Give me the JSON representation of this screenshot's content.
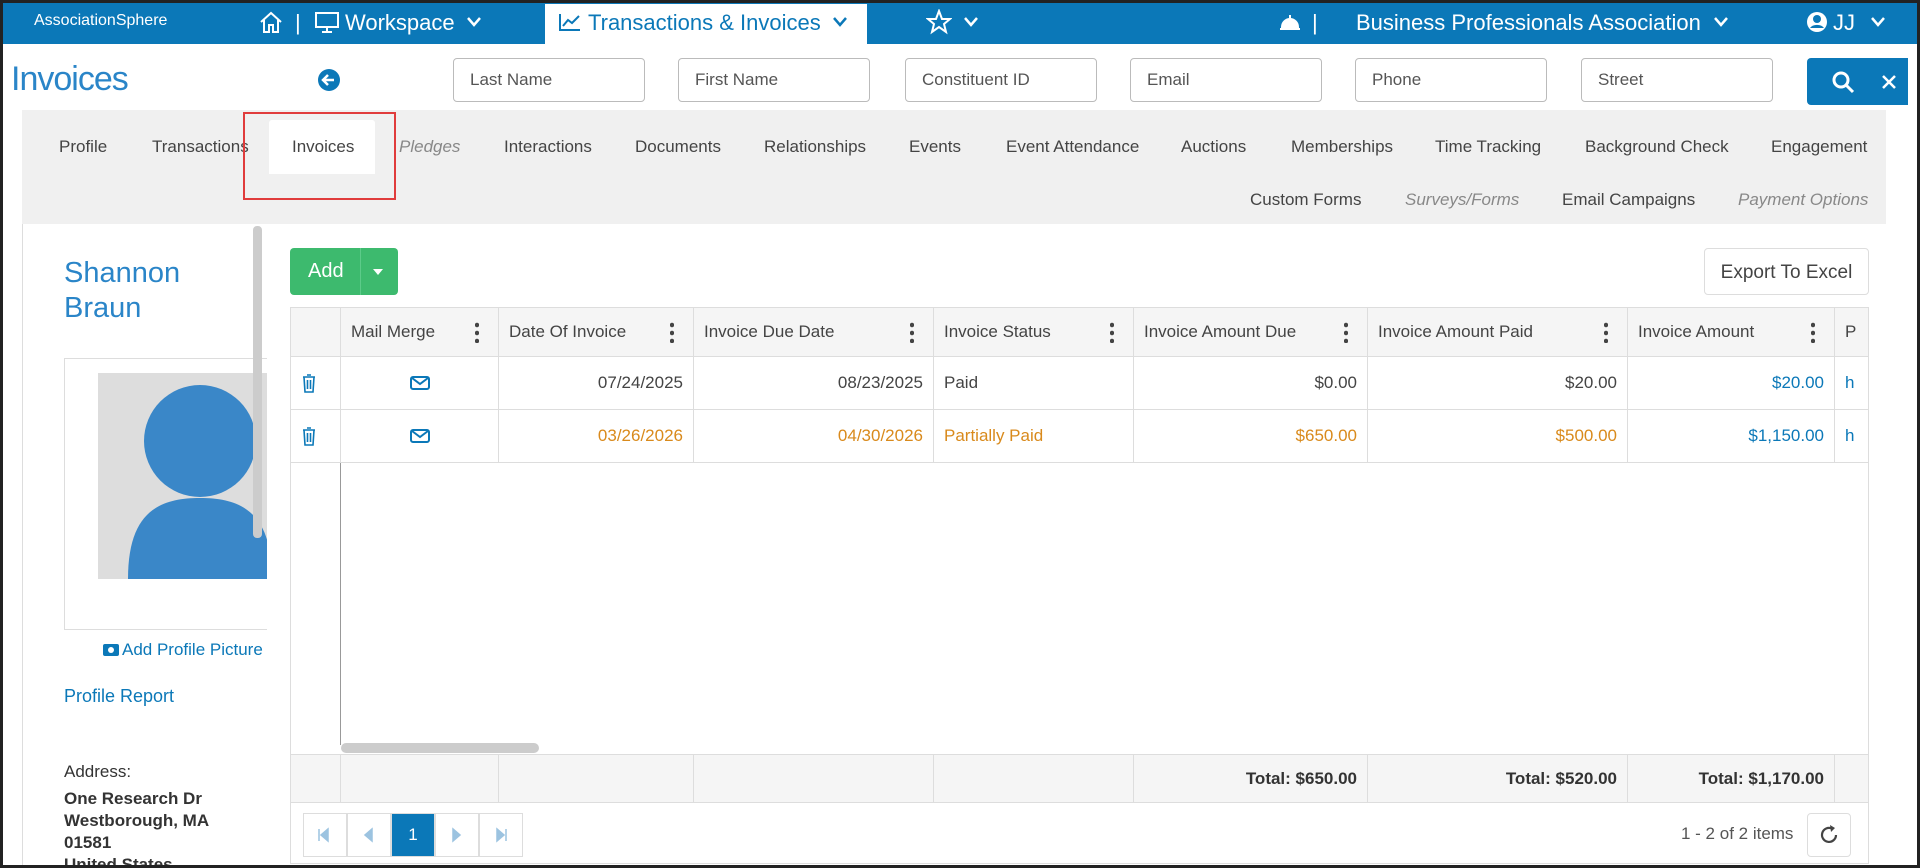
{
  "nav": {
    "brand": "AssociationSphere",
    "workspace": "Workspace",
    "active": "Transactions & Invoices",
    "organization": "Business Professionals Association",
    "user": "JJ"
  },
  "page_title": "Invoices",
  "search_fields": [
    "Last Name",
    "First Name",
    "Constituent ID",
    "Email",
    "Phone",
    "Street"
  ],
  "tabs": {
    "row1": [
      {
        "label": "Profile"
      },
      {
        "label": "Transactions"
      },
      {
        "label": "Invoices",
        "active": true
      },
      {
        "label": "Pledges",
        "style": "italic"
      },
      {
        "label": "Interactions"
      },
      {
        "label": "Documents"
      },
      {
        "label": "Relationships"
      },
      {
        "label": "Events"
      },
      {
        "label": "Event Attendance"
      },
      {
        "label": "Auctions"
      },
      {
        "label": "Memberships"
      },
      {
        "label": "Time Tracking"
      },
      {
        "label": "Background Check"
      },
      {
        "label": "Engagement"
      }
    ],
    "row2": [
      {
        "label": "Custom Forms"
      },
      {
        "label": "Surveys/Forms",
        "style": "italic"
      },
      {
        "label": "Email Campaigns"
      },
      {
        "label": "Payment Options",
        "style": "italic"
      }
    ]
  },
  "profile": {
    "name": "Shannon Braun",
    "add_picture": "Add Profile Picture",
    "report": "Profile Report",
    "address_label": "Address:",
    "address": [
      "One Research Dr",
      "Westborough, MA",
      "01581",
      "United States"
    ]
  },
  "buttons": {
    "add": "Add",
    "export": "Export To Excel"
  },
  "grid": {
    "columns": [
      "Mail Merge",
      "Date Of Invoice",
      "Invoice Due Date",
      "Invoice Status",
      "Invoice Amount Due",
      "Invoice Amount Paid",
      "Invoice Amount",
      "P"
    ],
    "rows": [
      {
        "date": "07/24/2025",
        "due": "08/23/2025",
        "status": "Paid",
        "amount_due": "$0.00",
        "amount_paid": "$20.00",
        "amount": "$20.00",
        "extra": "h"
      },
      {
        "date": "03/26/2026",
        "due": "04/30/2026",
        "status": "Partially Paid",
        "amount_due": "$650.00",
        "amount_paid": "$500.00",
        "amount": "$1,150.00",
        "extra": "h",
        "highlight": true
      }
    ],
    "totals": [
      "Total: $650.00",
      "Total: $520.00",
      "Total: $1,170.00"
    ]
  },
  "pager": {
    "page": "1",
    "summary": "1 - 2 of 2 items"
  }
}
